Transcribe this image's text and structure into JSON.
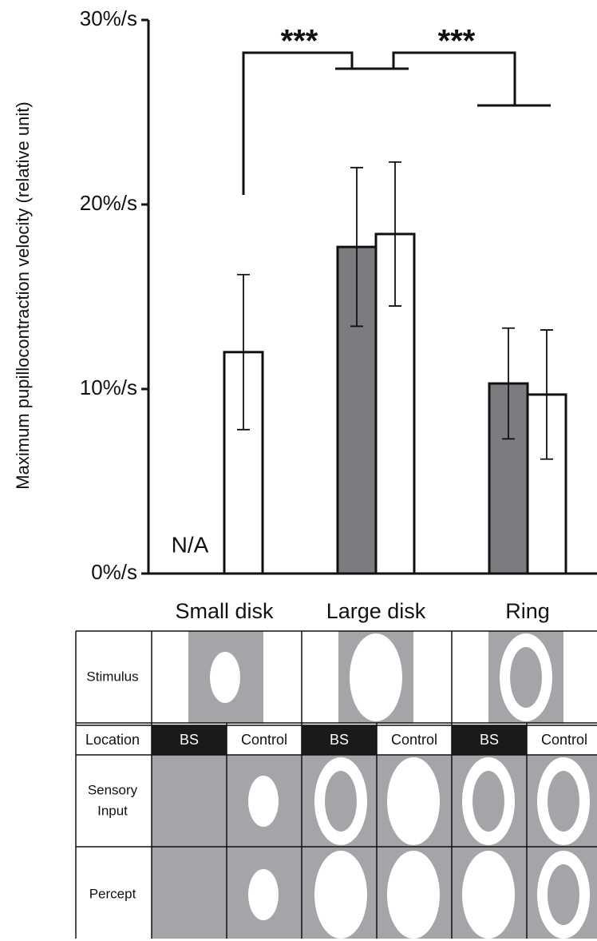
{
  "chart_data": {
    "type": "bar",
    "y_label": "Maximum pupillocontraction velocity (relative unit)",
    "categories": [
      "Small disk",
      "Large disk",
      "Ring"
    ],
    "series": [
      {
        "name": "BS",
        "color": "#7b7c7f",
        "values": [
          null,
          17.7,
          10.3
        ],
        "errors": [
          null,
          4.3,
          3.0
        ]
      },
      {
        "name": "Control",
        "color": "#ffffff",
        "values": [
          12.0,
          18.4,
          9.7
        ],
        "errors": [
          4.2,
          3.9,
          3.5
        ]
      }
    ],
    "ylim": [
      0,
      30
    ],
    "yticks": [
      {
        "value": 0,
        "label": "0%/s"
      },
      {
        "value": 10,
        "label": "10%/s"
      },
      {
        "value": 20,
        "label": "20%/s"
      },
      {
        "value": 30,
        "label": "30%/s"
      }
    ],
    "annotations": {
      "missing": "N/A",
      "significance_left": "***",
      "significance_right": "***"
    }
  },
  "table": {
    "row_labels": [
      "Stimulus",
      "Location",
      [
        "Sensory",
        "Input"
      ],
      "Percept"
    ]
  }
}
